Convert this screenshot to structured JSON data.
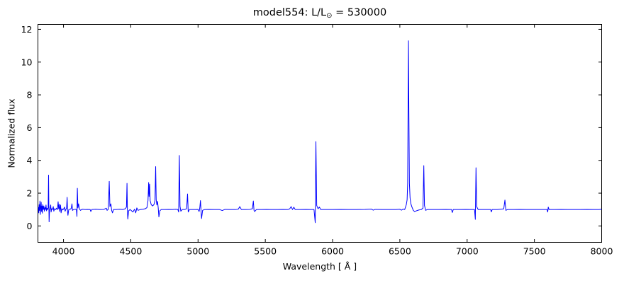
{
  "figure": {
    "title_prefix": "model554: L/L",
    "title_sub": "⊙",
    "title_suffix": " = 530000"
  },
  "chart_data": {
    "type": "line",
    "title": "model554: L/L⊙ = 530000",
    "xlabel": "Wavelength [ Å ]",
    "ylabel": "Normalized flux",
    "xlim": [
      3810,
      8000
    ],
    "ylim": [
      -1.0,
      12.3
    ],
    "xticks": [
      4000,
      4500,
      5000,
      5500,
      6000,
      6500,
      7000,
      7500,
      8000
    ],
    "yticks": [
      0,
      2,
      4,
      6,
      8,
      10,
      12
    ],
    "grid": false,
    "legend": "none",
    "line_color": "#0000ff",
    "background": "#ffffff",
    "series": [
      {
        "name": "normalized-flux-spectrum",
        "points": [
          [
            3813,
            1.15
          ],
          [
            3816,
            0.8
          ],
          [
            3819,
            1.3
          ],
          [
            3822,
            0.95
          ],
          [
            3825,
            1.52
          ],
          [
            3828,
            0.7
          ],
          [
            3831,
            1.1
          ],
          [
            3834,
            1.45
          ],
          [
            3837,
            0.88
          ],
          [
            3840,
            1.2
          ],
          [
            3843,
            0.78
          ],
          [
            3846,
            1.3
          ],
          [
            3850,
            1.0
          ],
          [
            3854,
            1.22
          ],
          [
            3858,
            0.9
          ],
          [
            3862,
            1.12
          ],
          [
            3866,
            1.0
          ],
          [
            3870,
            1.28
          ],
          [
            3874,
            0.92
          ],
          [
            3878,
            1.08
          ],
          [
            3882,
            1.0
          ],
          [
            3886,
            1.1
          ],
          [
            3889,
            3.1
          ],
          [
            3891,
            1.3
          ],
          [
            3893,
            0.25
          ],
          [
            3896,
            0.95
          ],
          [
            3900,
            1.05
          ],
          [
            3905,
            1.28
          ],
          [
            3908,
            0.85
          ],
          [
            3912,
            1.05
          ],
          [
            3918,
            1.0
          ],
          [
            3924,
            1.18
          ],
          [
            3928,
            0.9
          ],
          [
            3934,
            1.05
          ],
          [
            3942,
            1.0
          ],
          [
            3948,
            1.08
          ],
          [
            3955,
            1.0
          ],
          [
            3960,
            1.48
          ],
          [
            3964,
            1.05
          ],
          [
            3968,
            1.32
          ],
          [
            3972,
            0.88
          ],
          [
            3978,
            1.28
          ],
          [
            3982,
            0.8
          ],
          [
            3988,
            1.05
          ],
          [
            3995,
            0.98
          ],
          [
            4002,
            1.05
          ],
          [
            4008,
            1.15
          ],
          [
            4012,
            0.9
          ],
          [
            4018,
            1.02
          ],
          [
            4023,
            1.08
          ],
          [
            4027,
            1.75
          ],
          [
            4030,
            0.92
          ],
          [
            4033,
            0.65
          ],
          [
            4039,
            1.0
          ],
          [
            4050,
            1.02
          ],
          [
            4058,
            1.08
          ],
          [
            4063,
            1.35
          ],
          [
            4067,
            0.95
          ],
          [
            4075,
            1.0
          ],
          [
            4088,
            1.02
          ],
          [
            4096,
            1.0
          ],
          [
            4100,
            0.58
          ],
          [
            4103,
            2.3
          ],
          [
            4107,
            1.1
          ],
          [
            4112,
            1.35
          ],
          [
            4118,
            1.05
          ],
          [
            4126,
            0.95
          ],
          [
            4140,
            1.02
          ],
          [
            4160,
            1.0
          ],
          [
            4180,
            1.01
          ],
          [
            4198,
            1.0
          ],
          [
            4203,
            0.88
          ],
          [
            4210,
            1.0
          ],
          [
            4240,
            1.02
          ],
          [
            4270,
            1.0
          ],
          [
            4300,
            1.01
          ],
          [
            4318,
            1.08
          ],
          [
            4324,
            0.95
          ],
          [
            4333,
            1.02
          ],
          [
            4340,
            2.72
          ],
          [
            4345,
            1.18
          ],
          [
            4352,
            1.35
          ],
          [
            4358,
            0.95
          ],
          [
            4364,
            0.8
          ],
          [
            4372,
            1.0
          ],
          [
            4390,
            1.0
          ],
          [
            4415,
            1.02
          ],
          [
            4440,
            1.0
          ],
          [
            4460,
            1.05
          ],
          [
            4468,
            1.15
          ],
          [
            4472,
            2.6
          ],
          [
            4475,
            0.95
          ],
          [
            4478,
            0.42
          ],
          [
            4484,
            0.92
          ],
          [
            4495,
            1.0
          ],
          [
            4516,
            0.85
          ],
          [
            4528,
            1.02
          ],
          [
            4537,
            0.8
          ],
          [
            4545,
            1.1
          ],
          [
            4555,
            0.95
          ],
          [
            4570,
            1.0
          ],
          [
            4590,
            1.02
          ],
          [
            4608,
            1.05
          ],
          [
            4620,
            1.12
          ],
          [
            4628,
            1.55
          ],
          [
            4633,
            2.65
          ],
          [
            4636,
            1.8
          ],
          [
            4640,
            2.55
          ],
          [
            4644,
            1.55
          ],
          [
            4652,
            1.3
          ],
          [
            4662,
            1.22
          ],
          [
            4672,
            1.3
          ],
          [
            4680,
            1.55
          ],
          [
            4685,
            3.62
          ],
          [
            4689,
            1.6
          ],
          [
            4694,
            1.28
          ],
          [
            4699,
            1.5
          ],
          [
            4704,
            1.1
          ],
          [
            4709,
            0.55
          ],
          [
            4716,
            0.92
          ],
          [
            4726,
            1.0
          ],
          [
            4750,
            1.0
          ],
          [
            4780,
            1.01
          ],
          [
            4810,
            1.0
          ],
          [
            4835,
            1.02
          ],
          [
            4850,
            1.0
          ],
          [
            4856,
            0.85
          ],
          [
            4861,
            4.3
          ],
          [
            4866,
            1.2
          ],
          [
            4872,
            0.9
          ],
          [
            4882,
            1.0
          ],
          [
            4900,
            1.0
          ],
          [
            4915,
            1.05
          ],
          [
            4922,
            1.95
          ],
          [
            4927,
            0.85
          ],
          [
            4936,
            1.0
          ],
          [
            4955,
            1.0
          ],
          [
            4980,
            1.0
          ],
          [
            5000,
            1.01
          ],
          [
            5008,
            0.88
          ],
          [
            5013,
            1.1
          ],
          [
            5018,
            1.55
          ],
          [
            5022,
            0.98
          ],
          [
            5026,
            0.45
          ],
          [
            5034,
            0.95
          ],
          [
            5048,
            1.0
          ],
          [
            5080,
            1.01
          ],
          [
            5120,
            1.0
          ],
          [
            5160,
            1.0
          ],
          [
            5180,
            0.94
          ],
          [
            5200,
            1.01
          ],
          [
            5240,
            1.0
          ],
          [
            5280,
            1.0
          ],
          [
            5300,
            1.03
          ],
          [
            5310,
            1.18
          ],
          [
            5322,
            1.0
          ],
          [
            5350,
            1.0
          ],
          [
            5385,
            1.01
          ],
          [
            5404,
            1.05
          ],
          [
            5411,
            1.52
          ],
          [
            5416,
            0.95
          ],
          [
            5421,
            0.88
          ],
          [
            5434,
            1.0
          ],
          [
            5470,
            1.0
          ],
          [
            5510,
            1.01
          ],
          [
            5550,
            1.0
          ],
          [
            5590,
            1.0
          ],
          [
            5630,
            1.01
          ],
          [
            5668,
            1.0
          ],
          [
            5682,
            1.05
          ],
          [
            5692,
            1.18
          ],
          [
            5702,
            1.0
          ],
          [
            5712,
            1.14
          ],
          [
            5722,
            1.0
          ],
          [
            5760,
            1.0
          ],
          [
            5800,
            1.01
          ],
          [
            5840,
            1.0
          ],
          [
            5862,
            1.0
          ],
          [
            5871,
            0.2
          ],
          [
            5876,
            5.15
          ],
          [
            5882,
            1.25
          ],
          [
            5892,
            1.05
          ],
          [
            5902,
            1.15
          ],
          [
            5912,
            1.0
          ],
          [
            5950,
            1.0
          ],
          [
            6000,
            1.0
          ],
          [
            6060,
            1.01
          ],
          [
            6120,
            1.0
          ],
          [
            6180,
            1.0
          ],
          [
            6240,
            1.01
          ],
          [
            6290,
            1.03
          ],
          [
            6302,
            0.96
          ],
          [
            6315,
            1.01
          ],
          [
            6370,
            1.0
          ],
          [
            6420,
            1.0
          ],
          [
            6470,
            1.0
          ],
          [
            6500,
            1.02
          ],
          [
            6512,
            0.96
          ],
          [
            6524,
            1.03
          ],
          [
            6536,
            1.0
          ],
          [
            6540,
            1.1
          ],
          [
            6548,
            1.3
          ],
          [
            6554,
            1.6
          ],
          [
            6558,
            2.6
          ],
          [
            6561,
            7.0
          ],
          [
            6564,
            11.3
          ],
          [
            6567,
            7.0
          ],
          [
            6571,
            2.6
          ],
          [
            6576,
            1.7
          ],
          [
            6582,
            1.35
          ],
          [
            6590,
            1.15
          ],
          [
            6600,
            0.95
          ],
          [
            6610,
            0.88
          ],
          [
            6622,
            0.92
          ],
          [
            6640,
            0.97
          ],
          [
            6658,
            1.0
          ],
          [
            6672,
            1.08
          ],
          [
            6678,
            3.68
          ],
          [
            6683,
            1.25
          ],
          [
            6692,
            0.95
          ],
          [
            6704,
            1.0
          ],
          [
            6740,
            1.0
          ],
          [
            6790,
            1.0
          ],
          [
            6840,
            1.01
          ],
          [
            6884,
            1.0
          ],
          [
            6890,
            0.82
          ],
          [
            6897,
            1.0
          ],
          [
            6940,
            1.0
          ],
          [
            6990,
            1.01
          ],
          [
            7035,
            1.0
          ],
          [
            7055,
            1.0
          ],
          [
            7061,
            0.4
          ],
          [
            7066,
            3.55
          ],
          [
            7071,
            1.18
          ],
          [
            7082,
            1.0
          ],
          [
            7120,
            1.0
          ],
          [
            7160,
            1.0
          ],
          [
            7175,
            1.0
          ],
          [
            7180,
            0.86
          ],
          [
            7186,
            1.0
          ],
          [
            7225,
            1.0
          ],
          [
            7272,
            1.04
          ],
          [
            7281,
            1.58
          ],
          [
            7288,
            0.95
          ],
          [
            7300,
            1.0
          ],
          [
            7345,
            1.0
          ],
          [
            7390,
            1.01
          ],
          [
            7440,
            1.0
          ],
          [
            7490,
            1.0
          ],
          [
            7540,
            1.0
          ],
          [
            7594,
            1.0
          ],
          [
            7599,
            0.85
          ],
          [
            7603,
            1.15
          ],
          [
            7609,
            1.0
          ],
          [
            7650,
            1.0
          ],
          [
            7700,
            1.01
          ],
          [
            7745,
            1.0
          ],
          [
            7790,
            1.0
          ],
          [
            7840,
            1.0
          ],
          [
            7890,
            1.01
          ],
          [
            7940,
            1.0
          ],
          [
            7980,
            1.0
          ],
          [
            8000,
            1.02
          ]
        ]
      }
    ]
  }
}
